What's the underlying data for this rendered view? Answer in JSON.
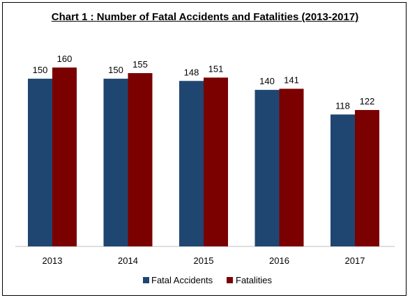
{
  "chart_data": {
    "type": "bar",
    "title": "Chart 1 : Number of Fatal Accidents and Fatalities (2013-2017)",
    "categories": [
      "2013",
      "2014",
      "2015",
      "2016",
      "2017"
    ],
    "series": [
      {
        "name": "Fatal Accidents",
        "values": [
          150,
          150,
          148,
          140,
          118
        ],
        "color": "#1f4670"
      },
      {
        "name": "Fatalities",
        "values": [
          160,
          155,
          151,
          141,
          122
        ],
        "color": "#7b0000"
      }
    ],
    "xlabel": "",
    "ylabel": "",
    "ylim": [
      0,
      170
    ],
    "grid": false,
    "legend_position": "bottom"
  }
}
